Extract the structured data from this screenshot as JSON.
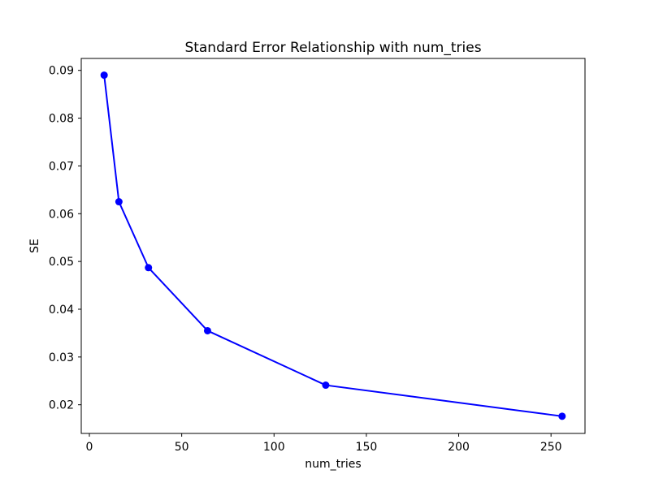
{
  "chart_data": {
    "type": "line",
    "title": "Standard Error Relationship with num_tries",
    "xlabel": "num_tries",
    "ylabel": "SE",
    "series": [
      {
        "name": "SE",
        "x": [
          8,
          16,
          32,
          64,
          128,
          256
        ],
        "y": [
          0.089,
          0.0625,
          0.0487,
          0.0355,
          0.0241,
          0.0176
        ],
        "line_color": "#0000ff",
        "marker": "circle"
      }
    ],
    "xticks": [
      0,
      50,
      100,
      150,
      200,
      250
    ],
    "yticks": [
      0.02,
      0.03,
      0.04,
      0.05,
      0.06,
      0.07,
      0.08,
      0.09
    ],
    "ytick_labels": [
      "0.02",
      "0.03",
      "0.04",
      "0.05",
      "0.06",
      "0.07",
      "0.08",
      "0.09"
    ],
    "xlim": [
      -4.4,
      268.4
    ],
    "ylim": [
      0.014,
      0.0925
    ],
    "grid": false,
    "legend": null,
    "background_color": "#ffffff",
    "spine_color": "#000000"
  }
}
